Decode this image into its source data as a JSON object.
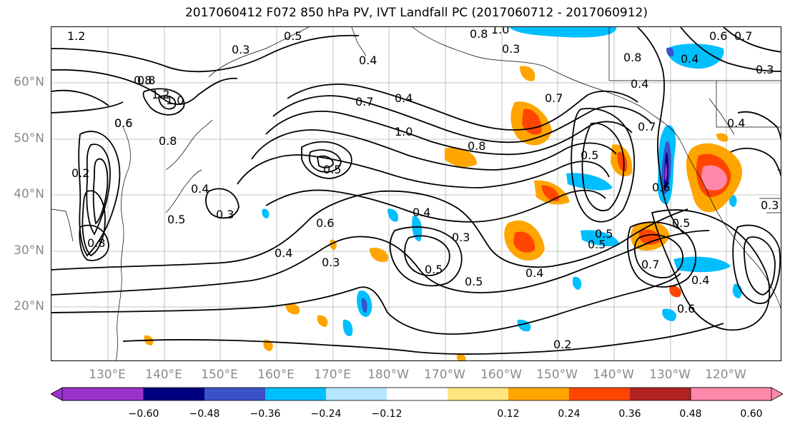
{
  "title": "2017060412 F072 850 hPa PV, IVT Landfall PC (2017060712 - 2017060912)",
  "map": {
    "lat_labels": [
      "60°N",
      "50°N",
      "40°N",
      "30°N",
      "20°N"
    ],
    "lon_labels": [
      "130°E",
      "140°E",
      "150°E",
      "160°E",
      "170°E",
      "180°W",
      "170°W",
      "160°W",
      "150°W",
      "140°W",
      "130°W",
      "120°W"
    ],
    "contour_labels": [
      "1.2",
      "0.8",
      "0.5",
      "0.3",
      "0.8",
      "0.4",
      "0.3",
      "1.0",
      "0.6",
      "0.7",
      "0.8",
      "1.2",
      "1.0",
      "0.6",
      "0.7",
      "0.4",
      "1.0",
      "0.8",
      "0.5",
      "0.6",
      "0.2",
      "0.4",
      "0.5",
      "0.3",
      "0.6",
      "0.4",
      "0.3",
      "0.4",
      "0.3",
      "0.5",
      "0.5",
      "0.4",
      "0.5",
      "0.7",
      "0.5",
      "0.6",
      "0.5",
      "0.4",
      "0.6",
      "0.7",
      "0.3",
      "0.2",
      "0.8",
      "0.4",
      "0.3",
      "0.8",
      "0.8",
      "0.5",
      "0.4",
      "0.7",
      "0.4"
    ],
    "colors": {
      "neg_strong": "#000080",
      "neg_mid": "#3a52c8",
      "neg": "#00bfff",
      "neg_light": "#b4e6ff",
      "pos_light": "#ffe680",
      "pos": "#ffa500",
      "pos_mid": "#ff4500",
      "pos_strong": "#b22222",
      "pos_max": "#ff88aa",
      "neg_max": "#9a33cc"
    }
  },
  "colorbar": {
    "ticks": [
      "−0.60",
      "−0.48",
      "−0.36",
      "−0.24",
      "−0.12",
      "0.12",
      "0.24",
      "0.36",
      "0.48",
      "0.60"
    ],
    "colors": [
      "#9a33cc",
      "#000080",
      "#3a52c8",
      "#00bfff",
      "#b4e6ff",
      "#ffffff",
      "#ffe680",
      "#ffa500",
      "#ff4500",
      "#b22222",
      "#ff88aa"
    ]
  }
}
